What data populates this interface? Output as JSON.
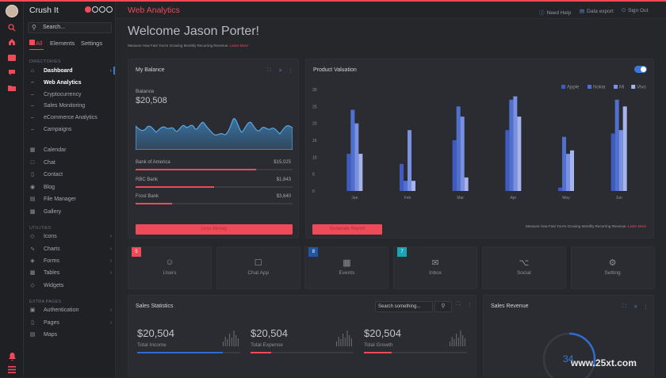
{
  "app": {
    "brand": "Crush It",
    "title": "Web Analytics"
  },
  "header": {
    "links": [
      {
        "icon": "info-icon",
        "label": "Need Help"
      },
      {
        "icon": "file-icon",
        "label": "Data export"
      },
      {
        "icon": "power-icon",
        "label": "Sign Out"
      }
    ]
  },
  "sidebar": {
    "search_placeholder": "Search...",
    "tabs": [
      "All",
      "Elements",
      "Settings"
    ],
    "section_directories": "DIRECTORIES",
    "dashboard": {
      "label": "Dashboard",
      "icon": "home-icon"
    },
    "sub_items": [
      "Web Analytics",
      "Cryptocurrency",
      "Sales Monitoring",
      "eCommerce Analytics",
      "Campaigns"
    ],
    "apps": [
      {
        "label": "Calendar",
        "icon": "calendar-icon"
      },
      {
        "label": "Chat",
        "icon": "chat-icon"
      },
      {
        "label": "Contact",
        "icon": "contact-icon"
      },
      {
        "label": "Blog",
        "icon": "blog-icon"
      },
      {
        "label": "File Manager",
        "icon": "folder-icon"
      },
      {
        "label": "Gallery",
        "icon": "image-icon"
      }
    ],
    "section_utilities": "UTILITIES",
    "utilities": [
      {
        "label": "Icons",
        "icon": "tag-icon"
      },
      {
        "label": "Charts",
        "icon": "chart-icon"
      },
      {
        "label": "Forms",
        "icon": "layers-icon"
      },
      {
        "label": "Tables",
        "icon": "table-icon"
      },
      {
        "label": "Widgets",
        "icon": "tag-icon"
      }
    ],
    "section_extra": "EXTRA PAGES",
    "extra": [
      {
        "label": "Authentication",
        "icon": "lock-icon"
      },
      {
        "label": "Pages",
        "icon": "page-icon"
      },
      {
        "label": "Maps",
        "icon": "map-icon"
      }
    ]
  },
  "main": {
    "welcome": "Welcome Jason Porter!",
    "subtitle": "Measure How Fast You're Growing Monthly Recurring Revenue.",
    "subtitle_link": "Learn More"
  },
  "balance": {
    "title": "My Balance",
    "label": "Balance",
    "amount": "$20,508",
    "accounts": [
      {
        "name": "Bank of America",
        "value": "$15,025",
        "progress": 0.77
      },
      {
        "name": "RBC Bank",
        "value": "$1,843",
        "progress": 0.5
      },
      {
        "name": "Frost Bank",
        "value": "$3,640",
        "progress": 0.23
      }
    ],
    "button": "Less Money"
  },
  "valuation": {
    "title": "Product Valuation",
    "button": "Generate Report",
    "note": "Measure How Fast You're Growing Monthly Recurring Revenue.",
    "note_link": "Learn More"
  },
  "chart_data": {
    "type": "bar",
    "categories": [
      "Jan",
      "Feb",
      "Mar",
      "Apr",
      "May",
      "Jun"
    ],
    "series": [
      {
        "name": "Apple",
        "color": "#3f5bbf",
        "values": [
          11,
          8,
          15,
          18,
          1,
          17
        ]
      },
      {
        "name": "Nokia",
        "color": "#5070d0",
        "values": [
          24,
          3,
          25,
          27,
          16,
          27
        ]
      },
      {
        "name": "Mi",
        "color": "#7a90e0",
        "values": [
          20,
          18,
          22,
          28,
          11,
          18
        ]
      },
      {
        "name": "Vivo",
        "color": "#a6b4ec",
        "values": [
          11,
          3,
          4,
          22,
          12,
          25
        ]
      }
    ],
    "yticks": [
      "30",
      "25",
      "20",
      "15",
      "10",
      "5",
      "0"
    ],
    "ylim": [
      0,
      30
    ],
    "legend": "top-right"
  },
  "tiles": [
    {
      "label": "Users",
      "icon": "user-icon",
      "badge": "5",
      "badge_color": "#ef4a58"
    },
    {
      "label": "Chat App",
      "icon": "chat-icon",
      "badge": "",
      "badge_color": ""
    },
    {
      "label": "Events",
      "icon": "calendar-icon",
      "badge": "8",
      "badge_color": "#1f57a4"
    },
    {
      "label": "Inbox",
      "icon": "inbox-icon",
      "badge": "7",
      "badge_color": "#19a5b5"
    },
    {
      "label": "Social",
      "icon": "share-icon",
      "badge": "",
      "badge_color": ""
    },
    {
      "label": "Setting",
      "icon": "gear-icon",
      "badge": "",
      "badge_color": ""
    }
  ],
  "sales_stats": {
    "title": "Sales Statistics",
    "search_placeholder": "Search something...",
    "stats": [
      {
        "value": "$20,504",
        "label": "Total Income",
        "progress": 0.83,
        "color": "#2f6bd0"
      },
      {
        "value": "$20,504",
        "label": "Total Expense",
        "progress": 0.2,
        "color": "#ef4a58"
      },
      {
        "value": "$20,504",
        "label": "Total Growth",
        "progress": 0.27,
        "color": "#ef4a58"
      }
    ]
  },
  "sales_revenue": {
    "title": "Sales Revenue",
    "value": "34",
    "progress": 0.3
  },
  "watermark": "www.25xt.com"
}
